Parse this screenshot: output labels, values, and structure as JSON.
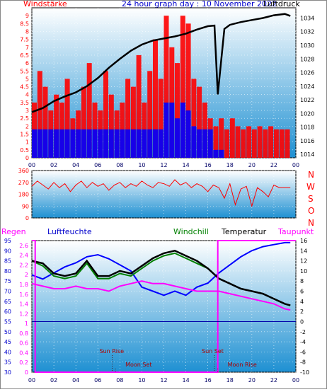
{
  "header": {
    "left_label": "Windstärke",
    "title": "24 hour graph day : 10 November 2022",
    "right_label": "Luftdruck"
  },
  "direction_labels": [
    "N",
    "W",
    "S",
    "O",
    "N"
  ],
  "lower_header": {
    "regen": "Regen",
    "luftfeuchte": "Luftfeuchte",
    "windchill": "Windchill",
    "temperatur": "Temperatur",
    "taupunkt": "Taupunkt"
  },
  "colors": {
    "wind": "#ff0000",
    "wind_avg": "#0000ff",
    "pressure": "#000000",
    "direction": "#ff0000",
    "temperature": "#000000",
    "windchill": "#008000",
    "dewpoint": "#ff00ff",
    "humidity": "#0000ff",
    "rain": "#ff00ff",
    "zero_line": "#0000aa"
  },
  "chart_data": [
    {
      "id": "wind_pressure",
      "type": "line",
      "x_ticks": [
        "00",
        "02",
        "04",
        "06",
        "08",
        "10",
        "12",
        "14",
        "16",
        "18",
        "20",
        "22",
        "00"
      ],
      "x_range": [
        0,
        24
      ],
      "ylim_left": [
        0,
        9.5
      ],
      "y_left_ticks": [
        "0",
        "0.5",
        "1",
        "1.5",
        "2",
        "2.5",
        "3",
        "3.5",
        "4",
        "4.5",
        "5",
        "5.5",
        "6",
        "6.5",
        "7",
        "7.5",
        "8",
        "8.5",
        "9"
      ],
      "ylim_right": [
        1013.5,
        1035.5
      ],
      "y_right_ticks": [
        "1014",
        "1016",
        "1018",
        "1020",
        "1022",
        "1024",
        "1026",
        "1028",
        "1030",
        "1032",
        "1034"
      ],
      "pressure": {
        "x": [
          0,
          1,
          2,
          3,
          4,
          5,
          6,
          7,
          8,
          9,
          10,
          11,
          12,
          13,
          14,
          15,
          16,
          16.6,
          16.9,
          17.5,
          18,
          19,
          20,
          21,
          22,
          23,
          23.5
        ],
        "y": [
          1020.2,
          1020.8,
          1021.8,
          1022.5,
          1023.1,
          1024.0,
          1025.2,
          1026.7,
          1028.0,
          1029.2,
          1030.1,
          1030.7,
          1031.0,
          1031.3,
          1031.7,
          1032.3,
          1032.8,
          1032.9,
          1022.8,
          1032.4,
          1033.0,
          1033.4,
          1033.7,
          1034.0,
          1034.4,
          1034.6,
          1034.3
        ]
      },
      "wind_gust": {
        "x": [
          0,
          0.5,
          1,
          1.5,
          2,
          2.5,
          3,
          3.5,
          4,
          4.5,
          5,
          5.5,
          6,
          6.5,
          7,
          7.5,
          8,
          8.5,
          9,
          9.5,
          10,
          10.5,
          11,
          11.5,
          12,
          12.5,
          13,
          13.5,
          14,
          14.5,
          15,
          15.5,
          16,
          16.5,
          17,
          17.5,
          18,
          18.5,
          19,
          19.5,
          20,
          20.5,
          21,
          21.5,
          22,
          22.5,
          23
        ],
        "y": [
          3.5,
          5.5,
          4.5,
          3.0,
          4.0,
          3.5,
          5.0,
          2.5,
          3.0,
          4.5,
          6.0,
          3.5,
          3.0,
          5.5,
          4.0,
          3.0,
          3.5,
          5.0,
          4.5,
          6.5,
          3.5,
          5.5,
          7.5,
          5.0,
          9.0,
          7.0,
          6.0,
          9.0,
          8.5,
          5.0,
          4.5,
          3.5,
          2.5,
          2.0,
          2.5,
          1.8,
          2.5,
          2.0,
          1.8,
          2.0,
          1.8,
          2.0,
          1.8,
          2.0,
          1.8,
          1.8,
          1.8
        ]
      },
      "wind_avg": {
        "x": [
          0,
          0.5,
          1,
          1.5,
          2,
          2.5,
          3,
          3.5,
          4,
          4.5,
          5,
          5.5,
          6,
          6.5,
          7,
          7.5,
          8,
          8.5,
          9,
          9.5,
          10,
          10.5,
          11,
          11.5,
          12,
          12.5,
          13,
          13.5,
          14,
          14.5,
          15,
          15.5,
          16,
          16.5,
          17
        ],
        "y": [
          1.8,
          1.8,
          1.8,
          1.8,
          1.8,
          1.8,
          1.8,
          1.8,
          1.8,
          1.8,
          1.8,
          1.8,
          1.8,
          1.8,
          1.8,
          1.8,
          1.8,
          1.8,
          1.8,
          1.8,
          1.8,
          1.8,
          1.8,
          1.8,
          3.5,
          3.5,
          2.5,
          3.5,
          3.0,
          2.0,
          1.8,
          1.8,
          1.8,
          0.5,
          0.5
        ]
      }
    },
    {
      "id": "wind_direction",
      "type": "line",
      "x_range": [
        0,
        24
      ],
      "ylim": [
        0,
        360
      ],
      "y_ticks": [
        "0",
        "90",
        "180",
        "270",
        "360"
      ],
      "direction": {
        "x": [
          0,
          0.5,
          1,
          1.5,
          2,
          2.5,
          3,
          3.5,
          4,
          4.5,
          5,
          5.5,
          6,
          6.5,
          7,
          7.5,
          8,
          8.5,
          9,
          9.5,
          10,
          10.5,
          11,
          11.5,
          12,
          12.5,
          13,
          13.5,
          14,
          14.5,
          15,
          15.5,
          16,
          16.5,
          17,
          17.5,
          18,
          18.5,
          19,
          19.5,
          20,
          20.5,
          21,
          21.5,
          22,
          22.5,
          23,
          23.5
        ],
        "y": [
          240,
          280,
          250,
          220,
          270,
          230,
          260,
          200,
          250,
          280,
          230,
          270,
          240,
          260,
          210,
          250,
          270,
          230,
          260,
          240,
          280,
          250,
          230,
          270,
          260,
          240,
          290,
          250,
          270,
          230,
          260,
          240,
          200,
          250,
          230,
          150,
          260,
          100,
          220,
          240,
          90,
          230,
          200,
          160,
          250,
          230,
          230,
          230
        ]
      }
    },
    {
      "id": "temp_humidity_rain",
      "type": "line",
      "x_range": [
        0,
        24
      ],
      "ylim_temp": [
        -10,
        16
      ],
      "y_temp_ticks": [
        "16",
        "14",
        "12",
        "10",
        "8",
        "6",
        "4",
        "2",
        "0",
        "-2",
        "-4",
        "-6",
        "-8",
        "-10"
      ],
      "ylim_humidity": [
        30,
        95
      ],
      "y_humidity_ticks": [
        "95",
        "90",
        "85",
        "80",
        "75",
        "70",
        "65",
        "60",
        "55",
        "50",
        "45",
        "40",
        "35",
        "30"
      ],
      "ylim_rain": [
        0,
        2.7
      ],
      "y_rain_ticks": [
        "2.6",
        "2.4",
        "2.2",
        "2",
        "1.8",
        "1.6",
        "1.4",
        "1.2",
        "1",
        "0.8",
        "0.6",
        "0.4",
        "0.2",
        "0"
      ],
      "temperature": {
        "x": [
          0,
          1,
          2,
          3,
          4,
          5,
          6,
          7,
          8,
          9,
          10,
          11,
          12,
          13,
          14,
          15,
          16,
          17,
          18,
          19,
          20,
          21,
          22,
          23,
          23.5
        ],
        "y": [
          12,
          11.5,
          9.5,
          9,
          9.5,
          12,
          9,
          9,
          10,
          9.5,
          11,
          12.5,
          13.5,
          14,
          13,
          12,
          10.5,
          8.5,
          7.5,
          6.5,
          6,
          5.5,
          4.5,
          3.5,
          3.2
        ]
      },
      "windchill": {
        "x": [
          0,
          1,
          2,
          3,
          4,
          5,
          6,
          7,
          8,
          9,
          10,
          11,
          12,
          13,
          14,
          15,
          16,
          17,
          18,
          19,
          20,
          21,
          22,
          23,
          23.5
        ],
        "y": [
          12,
          11,
          9,
          8.5,
          9,
          11.5,
          8.5,
          8.5,
          9.5,
          9,
          10.5,
          12,
          13,
          13.5,
          12.5,
          11.5,
          10.5,
          8.5,
          7.5,
          6.5,
          6,
          5.5,
          4.5,
          3.5,
          3.2
        ]
      },
      "dewpoint": {
        "x": [
          0,
          1,
          2,
          3,
          4,
          5,
          6,
          7,
          8,
          9,
          10,
          11,
          12,
          13,
          14,
          15,
          16,
          17,
          18,
          19,
          20,
          21,
          22,
          23,
          23.5
        ],
        "y": [
          7.5,
          7,
          6.5,
          6.5,
          7,
          6.5,
          6.5,
          6,
          7,
          7.5,
          8,
          7.5,
          7.5,
          7,
          6.5,
          6,
          6,
          6,
          5.5,
          5,
          4.5,
          4,
          3.5,
          2.5,
          2.3
        ]
      },
      "humidity": {
        "x": [
          0,
          1,
          2,
          3,
          4,
          5,
          6,
          7,
          8,
          9,
          10,
          11,
          12,
          13,
          14,
          15,
          16,
          17,
          18,
          19,
          20,
          21,
          22,
          23,
          23.5
        ],
        "y": [
          78,
          76,
          79,
          82,
          84,
          87,
          88,
          86,
          83,
          80,
          72,
          70,
          68,
          70,
          68,
          72,
          74,
          79,
          83,
          87,
          90,
          92,
          93,
          94,
          94
        ]
      },
      "rain": {
        "x": [
          0,
          0.3,
          0.3,
          16.9,
          16.9,
          24
        ],
        "y": [
          2.7,
          2.7,
          0,
          0,
          2.7,
          2.7
        ]
      },
      "annotations": [
        {
          "label": "Sun Rise",
          "x": 7.3
        },
        {
          "label": "Moon Set",
          "x": 7.6
        },
        {
          "label": "Sun Set",
          "x": 16.6
        },
        {
          "label": "Moon Rise",
          "x": 16.9
        }
      ]
    }
  ]
}
